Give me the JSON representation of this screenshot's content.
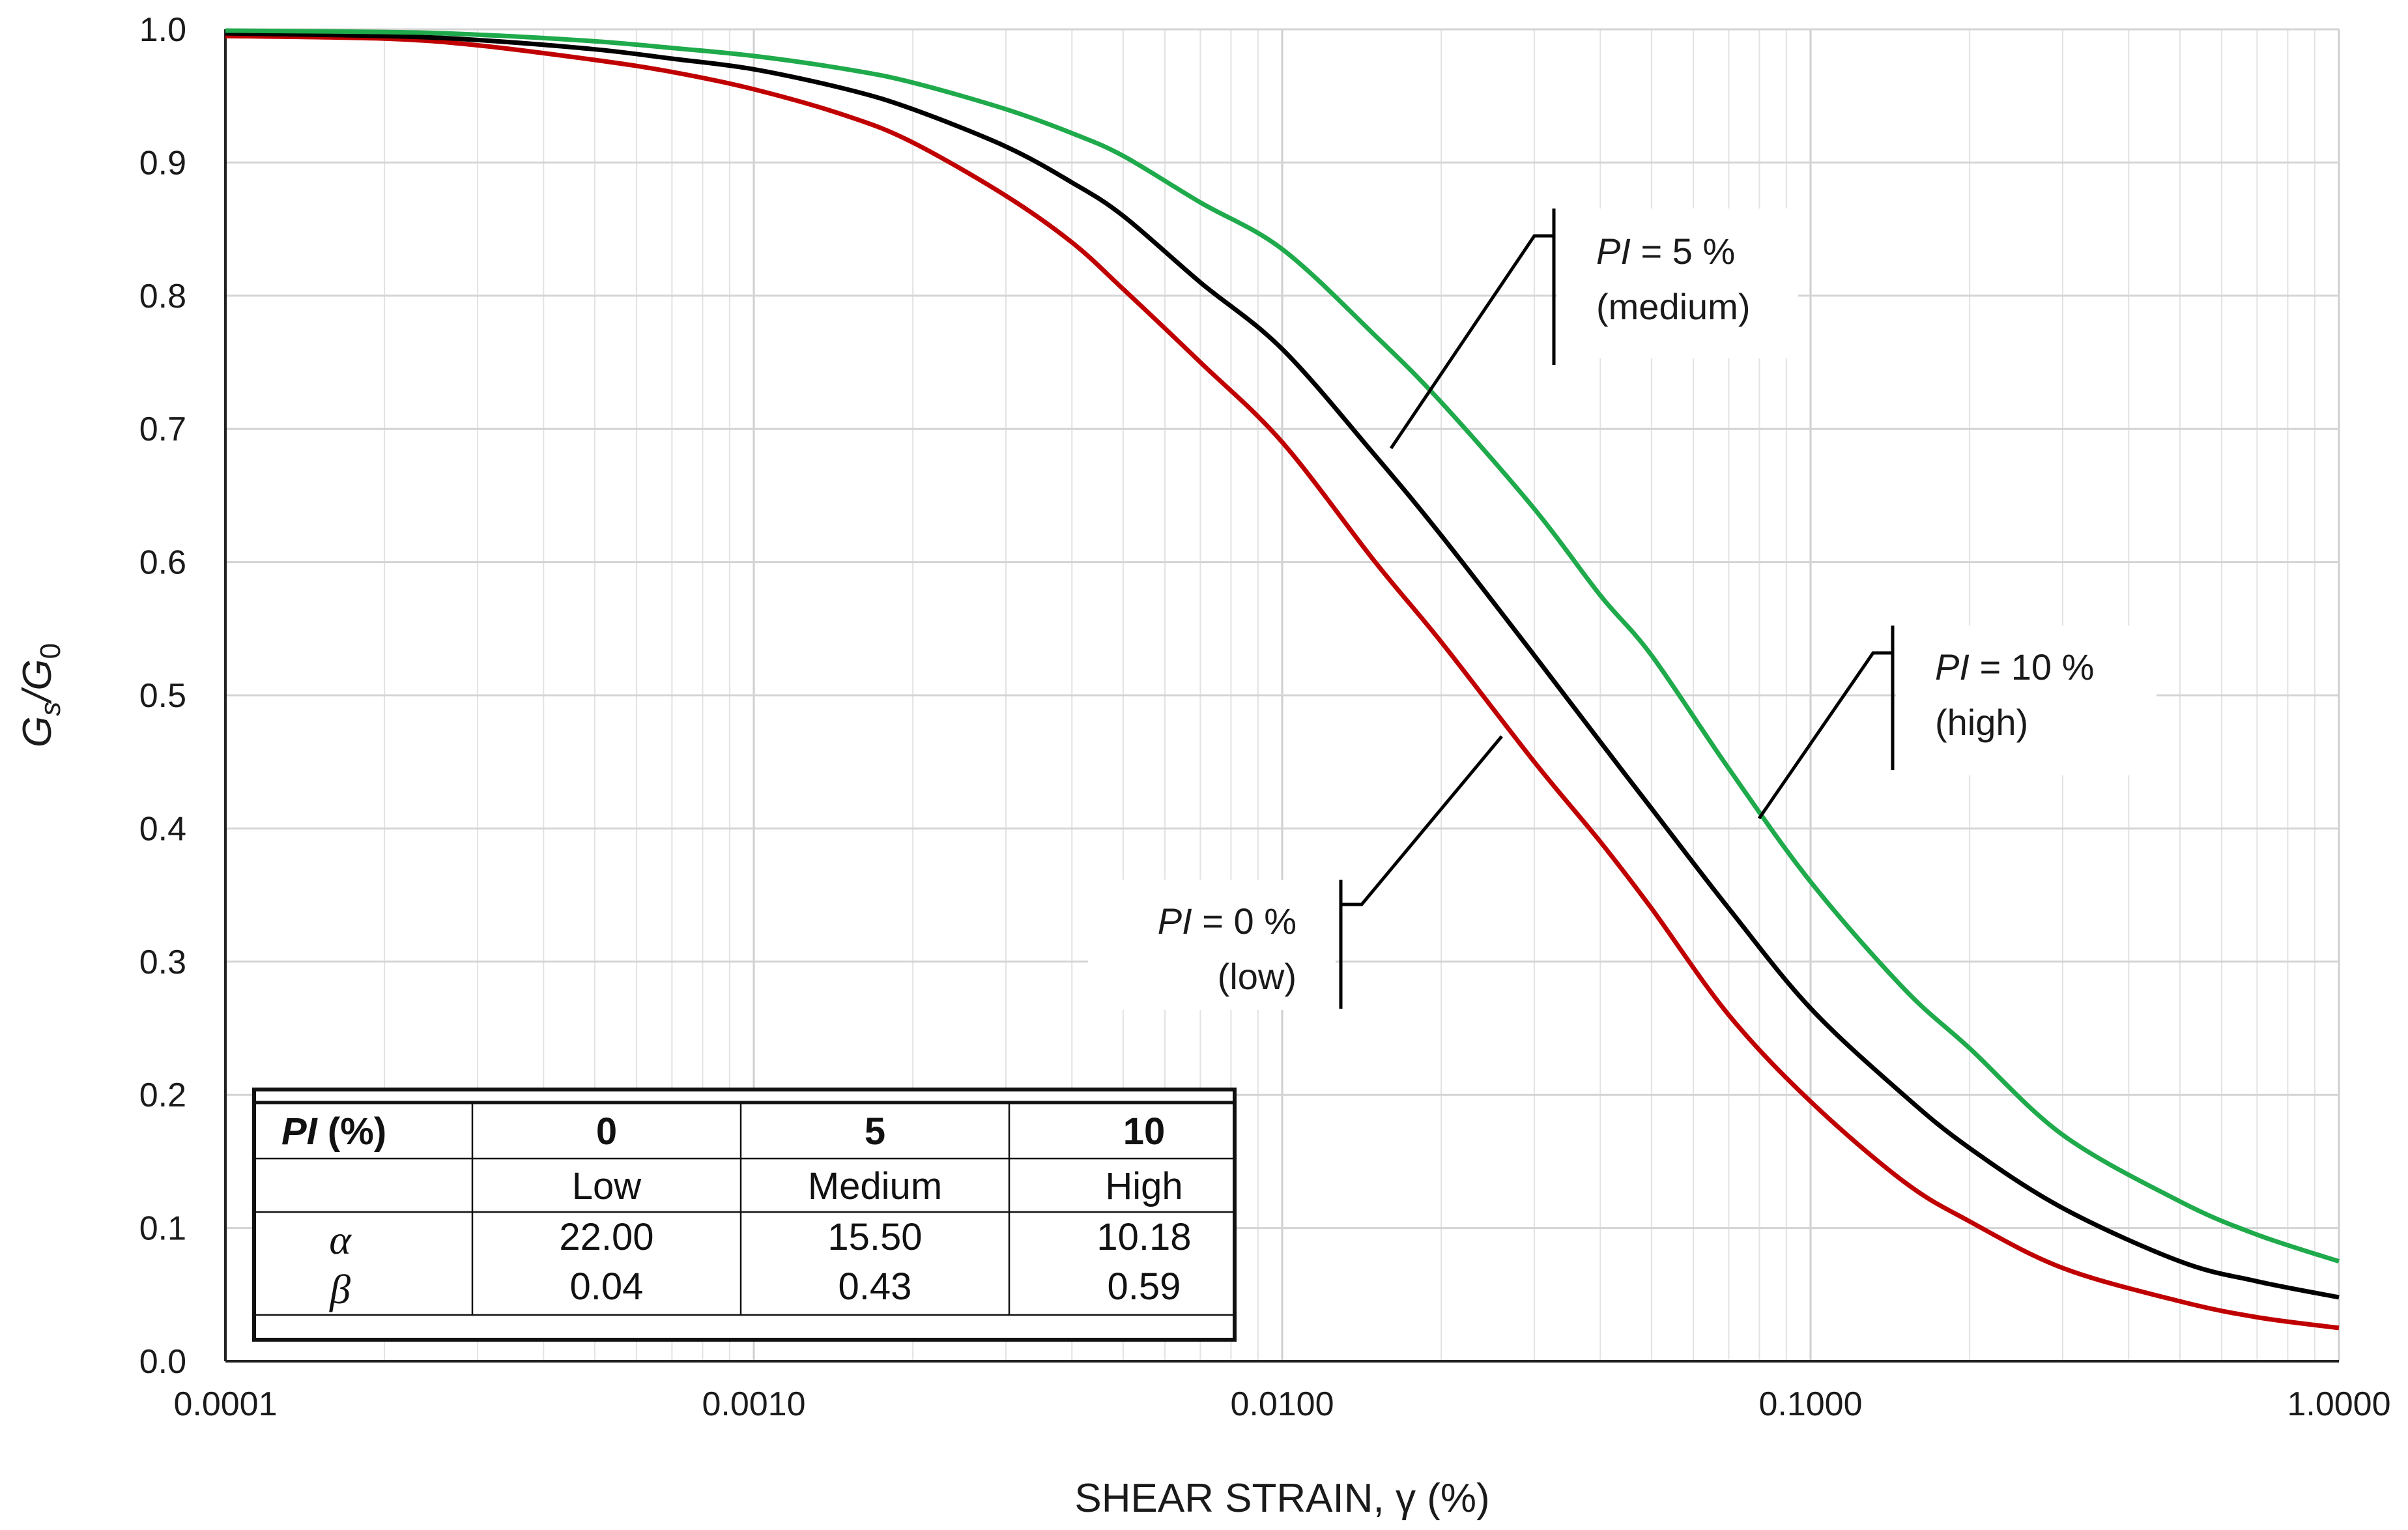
{
  "chart_data": {
    "type": "line",
    "xscale": "log",
    "xlabel": "SHEAR STRAIN, γ (%)",
    "ylabel": {
      "main": "G",
      "sub1": "s",
      "sep": "/G",
      "sub2": "0"
    },
    "xlim": [
      0.0001,
      1.0
    ],
    "ylim": [
      0.0,
      1.0
    ],
    "x_tick_labels": [
      "0.0001",
      "0.0010",
      "0.0100",
      "0.1000",
      "1.0000"
    ],
    "x_ticks": [
      0.0001,
      0.001,
      0.01,
      0.1,
      1.0
    ],
    "y_tick_labels": [
      "0.0",
      "0.1",
      "0.2",
      "0.3",
      "0.4",
      "0.5",
      "0.6",
      "0.7",
      "0.8",
      "0.9",
      "1.0"
    ],
    "y_ticks": [
      0.0,
      0.1,
      0.2,
      0.3,
      0.4,
      0.5,
      0.6,
      0.7,
      0.8,
      0.9,
      1.0
    ],
    "grid": true,
    "series": [
      {
        "name": "PI = 0 % (low)",
        "color": "#c00000",
        "x": [
          0.0001,
          0.0002,
          0.0003,
          0.0005,
          0.0007,
          0.001,
          0.0015,
          0.002,
          0.003,
          0.004,
          0.005,
          0.007,
          0.01,
          0.015,
          0.02,
          0.03,
          0.04,
          0.05,
          0.07,
          0.1,
          0.15,
          0.2,
          0.3,
          0.5,
          0.7,
          1.0
        ],
        "values": [
          0.995,
          0.993,
          0.988,
          0.977,
          0.968,
          0.955,
          0.935,
          0.915,
          0.875,
          0.84,
          0.805,
          0.75,
          0.69,
          0.6,
          0.54,
          0.45,
          0.39,
          0.34,
          0.26,
          0.195,
          0.135,
          0.105,
          0.07,
          0.045,
          0.033,
          0.025
        ]
      },
      {
        "name": "PI = 5 % (medium)",
        "color": "#000000",
        "x": [
          0.0001,
          0.0002,
          0.0003,
          0.0005,
          0.0007,
          0.001,
          0.0015,
          0.002,
          0.003,
          0.004,
          0.005,
          0.007,
          0.01,
          0.015,
          0.02,
          0.03,
          0.04,
          0.05,
          0.07,
          0.1,
          0.15,
          0.2,
          0.3,
          0.5,
          0.7,
          1.0
        ],
        "values": [
          0.997,
          0.995,
          0.992,
          0.985,
          0.978,
          0.97,
          0.955,
          0.94,
          0.912,
          0.885,
          0.86,
          0.81,
          0.76,
          0.68,
          0.62,
          0.53,
          0.465,
          0.415,
          0.34,
          0.265,
          0.2,
          0.16,
          0.115,
          0.075,
          0.06,
          0.048
        ]
      },
      {
        "name": "PI = 10 % (high)",
        "color": "#1faa4b",
        "x": [
          0.0001,
          0.0002,
          0.0003,
          0.0005,
          0.0007,
          0.001,
          0.0015,
          0.002,
          0.003,
          0.004,
          0.005,
          0.007,
          0.01,
          0.015,
          0.02,
          0.03,
          0.04,
          0.05,
          0.07,
          0.1,
          0.15,
          0.2,
          0.3,
          0.5,
          0.7,
          1.0
        ],
        "values": [
          0.999,
          0.998,
          0.996,
          0.991,
          0.986,
          0.98,
          0.97,
          0.96,
          0.94,
          0.922,
          0.905,
          0.87,
          0.835,
          0.77,
          0.72,
          0.64,
          0.575,
          0.53,
          0.445,
          0.36,
          0.28,
          0.235,
          0.17,
          0.12,
          0.095,
          0.075
        ]
      }
    ],
    "annotations": [
      {
        "label_prefix": "PI",
        "label_suffix": " = 5 %",
        "sublabel": "(medium)"
      },
      {
        "label_prefix": "PI",
        "label_suffix": " = 10 %",
        "sublabel": "(high)"
      },
      {
        "label_prefix": "PI",
        "label_suffix": " = 0 %",
        "sublabel": "(low)"
      }
    ],
    "table": {
      "header": {
        "pi_label": "PI",
        "pi_unit": " (%)",
        "cols": [
          "0",
          "5",
          "10"
        ]
      },
      "row_class": {
        "label": "",
        "cols": [
          "Low",
          "Medium",
          "High"
        ]
      },
      "row_alpha": {
        "label": "α",
        "cols": [
          "22.00",
          "15.50",
          "10.18"
        ]
      },
      "row_beta": {
        "label": "β",
        "cols": [
          "0.04",
          "0.43",
          "0.59"
        ]
      }
    }
  }
}
